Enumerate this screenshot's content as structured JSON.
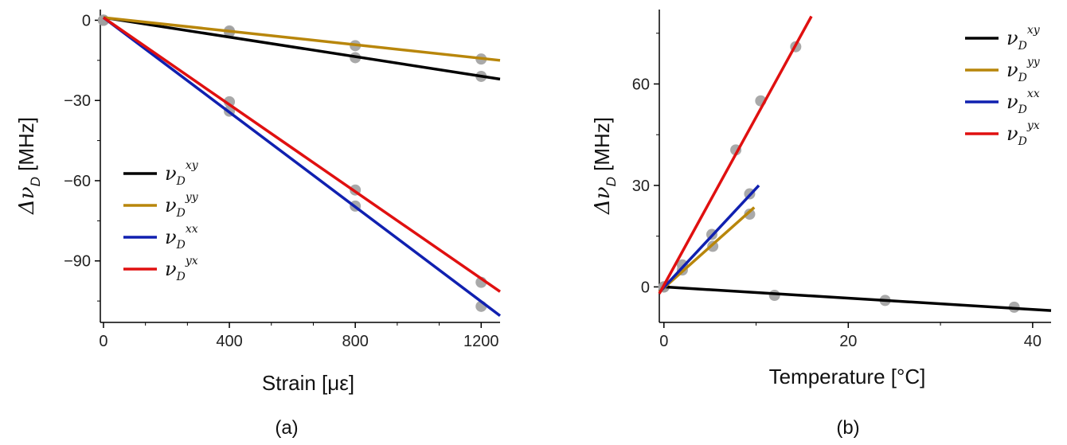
{
  "chart_data": [
    {
      "type": "scatter",
      "caption": "(a)",
      "xlabel": "Strain [με]",
      "ylabel_symbol": "Δν",
      "ylabel_sub": "D",
      "ylabel_unit": "[MHz]",
      "xlim": [
        -10,
        1260
      ],
      "ylim": [
        -113,
        4
      ],
      "xticks": [
        0,
        400,
        800,
        1200
      ],
      "yticks": [
        0,
        -30,
        -60,
        -90
      ],
      "xtick_labels": [
        "0",
        "400",
        "800",
        "1200"
      ],
      "ytick_labels": [
        "0",
        "−30",
        "−60",
        "−90"
      ],
      "legend_position": "center-left",
      "series": [
        {
          "name": "ν_D^xy",
          "sym": "ν",
          "sub": "D",
          "sup": "xy",
          "color": "#000000",
          "points": [
            [
              0,
              0
            ],
            [
              400,
              -4.5
            ],
            [
              800,
              -14
            ],
            [
              1200,
              -21
            ]
          ],
          "fit": [
            [
              0,
              1
            ],
            [
              1260,
              -22
            ]
          ]
        },
        {
          "name": "ν_D^yy",
          "sym": "ν",
          "sub": "D",
          "sup": "yy",
          "color": "#b8860b",
          "points": [
            [
              0,
              0
            ],
            [
              400,
              -4
            ],
            [
              800,
              -9.5
            ],
            [
              1200,
              -14.5
            ]
          ],
          "fit": [
            [
              0,
              1
            ],
            [
              1260,
              -15
            ]
          ]
        },
        {
          "name": "ν_D^xx",
          "sym": "ν",
          "sub": "D",
          "sup": "xx",
          "color": "#1020b0",
          "points": [
            [
              0,
              0
            ],
            [
              400,
              -34
            ],
            [
              800,
              -69.5
            ],
            [
              1200,
              -107
            ]
          ],
          "fit": [
            [
              0,
              1
            ],
            [
              1260,
              -110.5
            ]
          ]
        },
        {
          "name": "ν_D^yx",
          "sym": "ν",
          "sub": "D",
          "sup": "yx",
          "color": "#e01010",
          "points": [
            [
              0,
              0
            ],
            [
              400,
              -30.5
            ],
            [
              800,
              -63.5
            ],
            [
              1200,
              -98
            ]
          ],
          "fit": [
            [
              0,
              1
            ],
            [
              1260,
              -101.5
            ]
          ]
        }
      ]
    },
    {
      "type": "scatter",
      "caption": "(b)",
      "xlabel": "Temperature [°C]",
      "ylabel_symbol": "Δν",
      "ylabel_sub": "D",
      "ylabel_unit": "[MHz]",
      "xlim": [
        -0.5,
        42
      ],
      "ylim": [
        -10.5,
        82
      ],
      "xticks": [
        0,
        20,
        40
      ],
      "yticks": [
        0,
        30,
        60
      ],
      "xtick_labels": [
        "0",
        "20",
        "40"
      ],
      "ytick_labels": [
        "0",
        "30",
        "60"
      ],
      "legend_position": "top-right",
      "series": [
        {
          "name": "ν_D^xy",
          "sym": "ν",
          "sub": "D",
          "sup": "xy",
          "color": "#000000",
          "points": [
            [
              0,
              0
            ],
            [
              12,
              -2.5
            ],
            [
              24,
              -4
            ],
            [
              38,
              -6
            ]
          ],
          "fit": [
            [
              0,
              0
            ],
            [
              42,
              -7
            ]
          ]
        },
        {
          "name": "ν_D^yy",
          "sym": "ν",
          "sub": "D",
          "sup": "yy",
          "color": "#b8860b",
          "points": [
            [
              0,
              0
            ],
            [
              2,
              5
            ],
            [
              5.3,
              12
            ],
            [
              9.3,
              21.5
            ]
          ],
          "fit": [
            [
              -0.5,
              -1.5
            ],
            [
              9.8,
              23.5
            ]
          ]
        },
        {
          "name": "ν_D^xx",
          "sym": "ν",
          "sub": "D",
          "sup": "xx",
          "color": "#1020b0",
          "points": [
            [
              0,
              0
            ],
            [
              2,
              6.5
            ],
            [
              5.2,
              15.5
            ],
            [
              9.3,
              27.5
            ]
          ],
          "fit": [
            [
              -0.3,
              -1
            ],
            [
              10.3,
              30
            ]
          ]
        },
        {
          "name": "ν_D^yx",
          "sym": "ν",
          "sub": "D",
          "sup": "yx",
          "color": "#e01010",
          "points": [
            [
              0,
              0
            ],
            [
              7.8,
              40.5
            ],
            [
              10.5,
              55
            ],
            [
              14.3,
              71
            ]
          ],
          "fit": [
            [
              -0.5,
              -2
            ],
            [
              16,
              80
            ]
          ]
        }
      ]
    }
  ]
}
